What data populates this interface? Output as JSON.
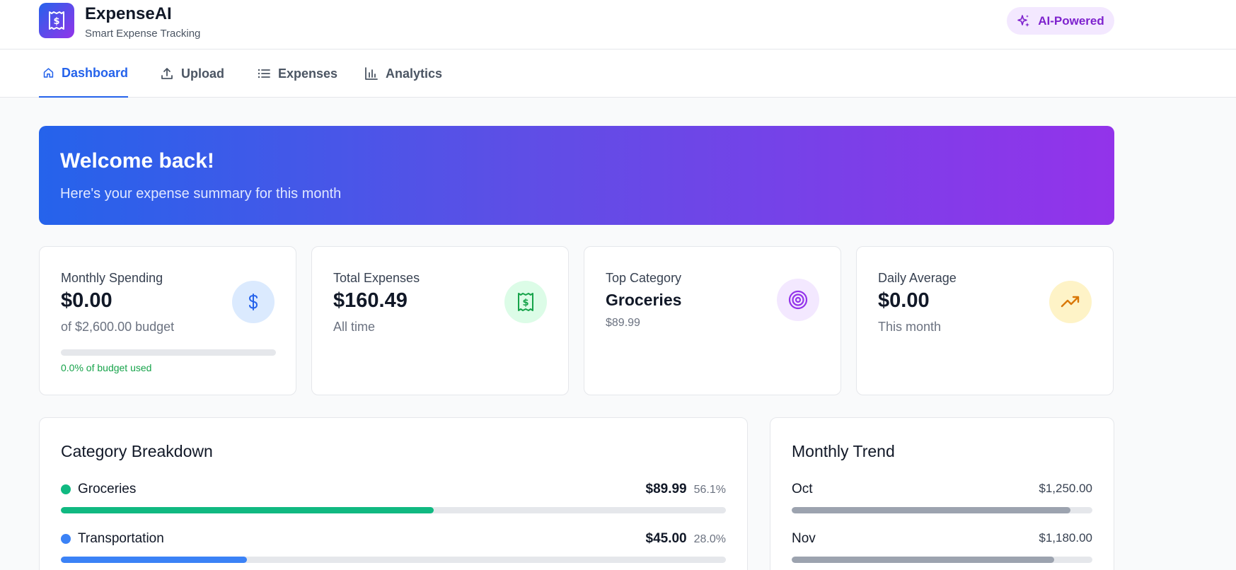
{
  "header": {
    "brand_name": "ExpenseAI",
    "brand_tagline": "Smart Expense Tracking",
    "badge_label": "AI-Powered"
  },
  "nav": {
    "tabs": [
      {
        "label": "Dashboard",
        "icon": "home-icon",
        "active": true
      },
      {
        "label": "Upload",
        "icon": "upload-icon",
        "active": false
      },
      {
        "label": "Expenses",
        "icon": "list-icon",
        "active": false
      },
      {
        "label": "Analytics",
        "icon": "bar-chart-icon",
        "active": false
      }
    ]
  },
  "hero": {
    "title": "Welcome back!",
    "subtitle": "Here's your expense summary for this month"
  },
  "stats": {
    "monthly": {
      "label": "Monthly Spending",
      "value": "$0.00",
      "sub": "of $2,600.00 budget",
      "budget_used_pct": 0.0,
      "budget_text": "0.0% of budget used",
      "icon": "dollar-icon"
    },
    "total": {
      "label": "Total Expenses",
      "value": "$160.49",
      "sub": "All time",
      "icon": "receipt-icon"
    },
    "top": {
      "label": "Top Category",
      "value": "Groceries",
      "sub": "$89.99",
      "icon": "target-icon"
    },
    "daily": {
      "label": "Daily Average",
      "value": "$0.00",
      "sub": "This month",
      "icon": "trending-up-icon"
    }
  },
  "category_breakdown": {
    "title": "Category Breakdown",
    "items": [
      {
        "name": "Groceries",
        "amount": "$89.99",
        "percent": "56.1%",
        "fill_pct": 56.1,
        "color": "#10b981"
      },
      {
        "name": "Transportation",
        "amount": "$45.00",
        "percent": "28.0%",
        "fill_pct": 28.0,
        "color": "#3b82f6"
      }
    ]
  },
  "monthly_trend": {
    "title": "Monthly Trend",
    "items": [
      {
        "month": "Oct",
        "amount": "$1,250.00",
        "fill_pct": 92.6
      },
      {
        "month": "Nov",
        "amount": "$1,180.00",
        "fill_pct": 87.4
      }
    ],
    "bar_color": "#9ca3af"
  },
  "colors": {
    "accent": "#2563eb",
    "purple": "#9333ea",
    "success": "#16a34a"
  }
}
